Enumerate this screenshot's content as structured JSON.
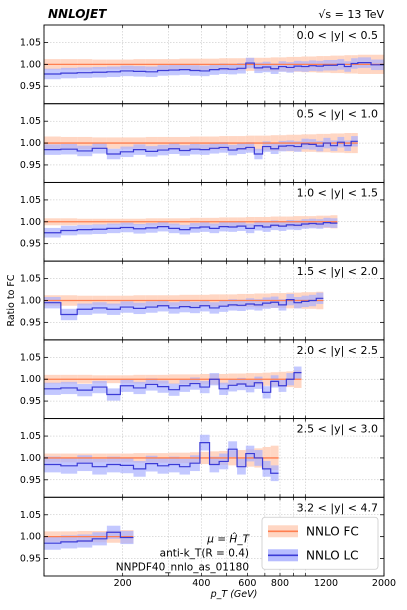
{
  "header": {
    "experiment": "NNLOJET",
    "energy": "√s = 13 TeV"
  },
  "axes": {
    "xlabel": "p_T (GeV)",
    "ylabel": "Ratio to FC",
    "xscale": "log",
    "xlim": [
      100,
      2000
    ],
    "ylim": [
      0.91,
      1.09
    ],
    "xticks": [
      200,
      400,
      600,
      800,
      1200,
      2000
    ],
    "xtick_labels": [
      "200",
      "400",
      "600",
      "800",
      "1200",
      "2000"
    ],
    "yticks": [
      0.95,
      1.0,
      1.05
    ],
    "ytick_labels": [
      "0.95",
      "1.00",
      "1.05"
    ]
  },
  "annotation": {
    "scale": "μ = Ĥ_T",
    "jet": "anti-k_T(R = 0.4)",
    "pdf": "NNPDF40_nnlo_as_01180"
  },
  "legend": {
    "position": "lower right",
    "items": [
      {
        "label": "NNLO FC",
        "line": "#ff7f50",
        "band": "#ffcfb8"
      },
      {
        "label": "NNLO LC",
        "line": "#3b3bd6",
        "band": "#aab0ff"
      }
    ]
  },
  "colors": {
    "fc_line": "#ff7f50",
    "fc_band": "#ffcfb8",
    "lc_line": "#3b3bd6",
    "lc_band": "#aab0ff",
    "grid": "#bbbbbb"
  },
  "chart_data": [
    {
      "type": "line",
      "label": "0.0 < |y| < 0.5",
      "edges": [
        100,
        116,
        134,
        153,
        174,
        196,
        220,
        245,
        272,
        300,
        330,
        362,
        395,
        430,
        468,
        507,
        548,
        592,
        638,
        686,
        737,
        790,
        846,
        905,
        967,
        1032,
        1101,
        1172,
        1248,
        1327,
        1410,
        1497,
        1588,
        1784,
        2000
      ],
      "lc": [
        0.978,
        0.98,
        0.981,
        0.982,
        0.983,
        0.985,
        0.984,
        0.983,
        0.986,
        0.987,
        0.988,
        0.986,
        0.985,
        0.988,
        0.99,
        0.989,
        0.991,
        1.003,
        0.992,
        0.994,
        0.99,
        0.995,
        0.993,
        0.996,
        0.995,
        0.997,
        0.996,
        0.998,
        0.998,
        1.0,
        0.995,
        1.002,
        1.004,
        0.999
      ],
      "lc_band": 0.012,
      "fc_band": [
        0.012,
        0.012,
        0.012,
        0.011,
        0.011,
        0.011,
        0.012,
        0.012,
        0.012,
        0.012,
        0.013,
        0.013,
        0.013,
        0.013,
        0.014,
        0.014,
        0.014,
        0.015,
        0.015,
        0.015,
        0.016,
        0.016,
        0.017,
        0.017,
        0.018,
        0.018,
        0.019,
        0.019,
        0.02,
        0.02,
        0.021,
        0.021,
        0.022,
        0.022
      ]
    },
    {
      "type": "line",
      "label": "0.5 < |y| < 1.0",
      "edges": [
        100,
        116,
        134,
        153,
        174,
        196,
        220,
        245,
        272,
        300,
        330,
        362,
        395,
        430,
        468,
        507,
        548,
        592,
        638,
        686,
        737,
        790,
        846,
        905,
        967,
        1032,
        1101,
        1172,
        1248,
        1327,
        1410,
        1497,
        1588
      ],
      "lc": [
        0.985,
        0.986,
        0.982,
        0.988,
        0.975,
        0.98,
        0.985,
        0.981,
        0.984,
        0.987,
        0.983,
        0.986,
        0.985,
        0.988,
        0.99,
        0.984,
        0.987,
        0.99,
        0.975,
        0.992,
        0.987,
        0.993,
        0.994,
        0.992,
        0.998,
        0.997,
        0.993,
        1.0,
        0.994,
        1.002,
        0.994,
        1.004
      ],
      "lc_band": 0.012,
      "fc_band": [
        0.015,
        0.014,
        0.014,
        0.013,
        0.013,
        0.013,
        0.013,
        0.014,
        0.014,
        0.014,
        0.014,
        0.015,
        0.015,
        0.015,
        0.016,
        0.016,
        0.016,
        0.017,
        0.017,
        0.017,
        0.018,
        0.018,
        0.019,
        0.019,
        0.02,
        0.02,
        0.021,
        0.021,
        0.022,
        0.022,
        0.023,
        0.023
      ]
    },
    {
      "type": "line",
      "label": "1.0 < |y| < 1.5",
      "edges": [
        100,
        116,
        134,
        153,
        174,
        196,
        220,
        245,
        272,
        300,
        330,
        362,
        395,
        430,
        468,
        507,
        548,
        592,
        638,
        686,
        737,
        790,
        846,
        905,
        967,
        1032,
        1101,
        1172,
        1248,
        1327
      ],
      "lc": [
        0.975,
        0.98,
        0.982,
        0.983,
        0.985,
        0.987,
        0.984,
        0.986,
        0.989,
        0.985,
        0.982,
        0.986,
        0.988,
        0.985,
        0.989,
        0.988,
        0.99,
        0.985,
        0.991,
        0.988,
        0.992,
        0.99,
        0.993,
        0.992,
        0.995,
        0.996,
        0.995,
        0.998,
        0.997
      ],
      "lc_band": 0.011,
      "fc_band": [
        0.008,
        0.008,
        0.007,
        0.007,
        0.007,
        0.007,
        0.007,
        0.008,
        0.008,
        0.008,
        0.008,
        0.009,
        0.009,
        0.009,
        0.01,
        0.01,
        0.01,
        0.011,
        0.011,
        0.011,
        0.012,
        0.012,
        0.012,
        0.013,
        0.013,
        0.013,
        0.014,
        0.014,
        0.015
      ]
    },
    {
      "type": "line",
      "label": "1.5 < |y| < 2.0",
      "edges": [
        100,
        116,
        134,
        153,
        174,
        196,
        220,
        245,
        272,
        300,
        330,
        362,
        395,
        430,
        468,
        507,
        548,
        592,
        638,
        686,
        737,
        790,
        846,
        905,
        967,
        1032,
        1101,
        1172
      ],
      "lc": [
        0.995,
        0.968,
        0.98,
        0.983,
        0.98,
        0.985,
        0.982,
        0.985,
        0.988,
        0.983,
        0.986,
        0.984,
        0.988,
        0.983,
        0.987,
        0.99,
        0.989,
        0.992,
        0.99,
        0.994,
        0.996,
        0.99,
        1.002,
        0.995,
        0.998,
        1.0,
        1.005
      ],
      "lc_band": 0.013,
      "fc_band": [
        0.012,
        0.012,
        0.011,
        0.011,
        0.011,
        0.011,
        0.012,
        0.012,
        0.012,
        0.012,
        0.013,
        0.013,
        0.013,
        0.014,
        0.014,
        0.014,
        0.015,
        0.015,
        0.016,
        0.016,
        0.017,
        0.017,
        0.018,
        0.018,
        0.019,
        0.019,
        0.02
      ]
    },
    {
      "type": "line",
      "label": "2.0 < |y| < 2.5",
      "edges": [
        100,
        116,
        134,
        153,
        174,
        196,
        220,
        245,
        272,
        300,
        330,
        362,
        395,
        430,
        468,
        507,
        548,
        592,
        638,
        686,
        737,
        790,
        846,
        905,
        967
      ],
      "lc": [
        0.978,
        0.98,
        0.975,
        0.982,
        0.965,
        0.985,
        0.98,
        0.988,
        0.983,
        0.976,
        0.985,
        0.99,
        0.982,
        1.0,
        0.978,
        0.986,
        0.989,
        0.984,
        0.992,
        0.97,
        0.995,
        0.985,
        1.0,
        1.015
      ],
      "lc_band": 0.014,
      "fc_band": [
        0.01,
        0.01,
        0.01,
        0.009,
        0.009,
        0.009,
        0.01,
        0.01,
        0.01,
        0.011,
        0.011,
        0.011,
        0.012,
        0.012,
        0.012,
        0.013,
        0.013,
        0.014,
        0.014,
        0.015,
        0.016,
        0.017,
        0.018,
        0.02
      ]
    },
    {
      "type": "line",
      "label": "2.5 < |y| < 3.0",
      "edges": [
        100,
        116,
        134,
        153,
        174,
        196,
        220,
        245,
        272,
        300,
        330,
        362,
        395,
        430,
        468,
        507,
        548,
        592,
        638,
        686,
        737,
        790
      ],
      "lc": [
        0.985,
        0.982,
        0.988,
        0.98,
        0.985,
        0.983,
        0.975,
        0.987,
        0.982,
        0.985,
        0.98,
        0.988,
        1.035,
        0.985,
        0.992,
        1.02,
        0.98,
        1.01,
        1.0,
        0.975,
        0.965
      ],
      "lc_band": 0.018,
      "fc_band": [
        0.01,
        0.01,
        0.01,
        0.01,
        0.01,
        0.01,
        0.011,
        0.011,
        0.011,
        0.012,
        0.012,
        0.013,
        0.014,
        0.015,
        0.016,
        0.017,
        0.018,
        0.02,
        0.022,
        0.025,
        0.028
      ]
    },
    {
      "type": "line",
      "label": "3.2 < |y| < 4.7",
      "edges": [
        100,
        116,
        134,
        153,
        174,
        196,
        220
      ],
      "lc": [
        0.985,
        0.988,
        0.99,
        0.995,
        1.01,
        0.998
      ],
      "lc_band": 0.015,
      "fc_band": [
        0.012,
        0.012,
        0.013,
        0.013,
        0.014,
        0.015
      ]
    }
  ]
}
